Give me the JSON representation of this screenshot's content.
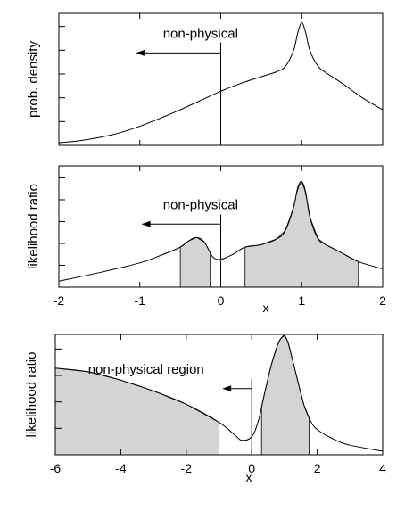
{
  "chart_data": [
    {
      "type": "line",
      "ylabel": "prob. density",
      "xlabel": "",
      "xlim": [
        -2,
        2
      ],
      "ylim": [
        0,
        1
      ],
      "y_ticks": 5,
      "x_tick_marks": [
        -2,
        -1,
        0,
        1,
        2
      ],
      "show_x_tick_labels": false,
      "grid": false,
      "annotation": {
        "text": "non-physical",
        "direction": "left",
        "x_from": 0,
        "x_to": -1.05,
        "y": 0.7,
        "vline_x": 0,
        "vline_y_top": 0.78
      },
      "x": [
        -2.0,
        -1.75,
        -1.5,
        -1.25,
        -1.0,
        -0.75,
        -0.5,
        -0.25,
        0.0,
        0.25,
        0.5,
        0.7,
        0.8,
        0.9,
        0.95,
        1.0,
        1.05,
        1.1,
        1.2,
        1.3,
        1.5,
        1.75,
        2.0
      ],
      "values": [
        0.02,
        0.035,
        0.06,
        0.095,
        0.145,
        0.205,
        0.27,
        0.34,
        0.41,
        0.47,
        0.52,
        0.56,
        0.6,
        0.72,
        0.85,
        0.93,
        0.85,
        0.72,
        0.6,
        0.55,
        0.47,
        0.36,
        0.27
      ],
      "shaded_ranges": []
    },
    {
      "type": "area",
      "ylabel": "likelihood ratio",
      "xlabel": "x",
      "xlim": [
        -2,
        2
      ],
      "ylim": [
        0,
        1
      ],
      "y_ticks": 5,
      "x_ticks": [
        "-2",
        "-1",
        "0",
        "1",
        "2"
      ],
      "grid": false,
      "annotation": {
        "text": "non-physical",
        "direction": "left",
        "x_from": 0,
        "x_to": -0.98,
        "y": 0.52,
        "vline_x": 0,
        "vline_y_top": 0.6
      },
      "x": [
        -2.0,
        -1.5,
        -1.0,
        -0.75,
        -0.5,
        -0.4,
        -0.3,
        -0.2,
        -0.1,
        0.0,
        0.15,
        0.3,
        0.5,
        0.7,
        0.8,
        0.9,
        0.95,
        1.0,
        1.05,
        1.1,
        1.2,
        1.3,
        1.5,
        1.7,
        2.0
      ],
      "values": [
        0.05,
        0.12,
        0.2,
        0.26,
        0.33,
        0.38,
        0.41,
        0.37,
        0.25,
        0.23,
        0.27,
        0.33,
        0.35,
        0.4,
        0.47,
        0.66,
        0.82,
        0.87,
        0.78,
        0.58,
        0.4,
        0.35,
        0.28,
        0.21,
        0.15
      ],
      "shaded_ranges": [
        [
          -0.5,
          -0.13
        ],
        [
          0.3,
          1.7
        ]
      ]
    },
    {
      "type": "area",
      "ylabel": "likelihood ratio",
      "xlabel": "x",
      "xlim": [
        -6,
        4
      ],
      "ylim": [
        0,
        1
      ],
      "y_ticks": 4,
      "x_ticks": [
        "-6",
        "-4",
        "-2",
        "0",
        "2",
        "4"
      ],
      "grid": false,
      "annotation": {
        "text": "non-physical region",
        "direction": "left",
        "x_from": 0,
        "x_to": -0.9,
        "y": 0.55,
        "vline_x": 0,
        "vline_y_top": 0.63
      },
      "x": [
        -6.0,
        -5.0,
        -4.0,
        -3.0,
        -2.0,
        -1.0,
        -0.5,
        -0.3,
        0.0,
        0.2,
        0.4,
        0.6,
        0.8,
        0.9,
        1.0,
        1.1,
        1.2,
        1.4,
        1.6,
        1.8,
        2.0,
        2.5,
        3.0,
        4.0
      ],
      "values": [
        0.72,
        0.69,
        0.62,
        0.53,
        0.42,
        0.27,
        0.16,
        0.12,
        0.15,
        0.28,
        0.52,
        0.75,
        0.92,
        0.97,
        0.99,
        0.94,
        0.84,
        0.62,
        0.41,
        0.28,
        0.21,
        0.13,
        0.08,
        0.03
      ],
      "shaded_ranges": [
        [
          -6,
          -1.0
        ],
        [
          0.3,
          1.75
        ]
      ]
    }
  ]
}
